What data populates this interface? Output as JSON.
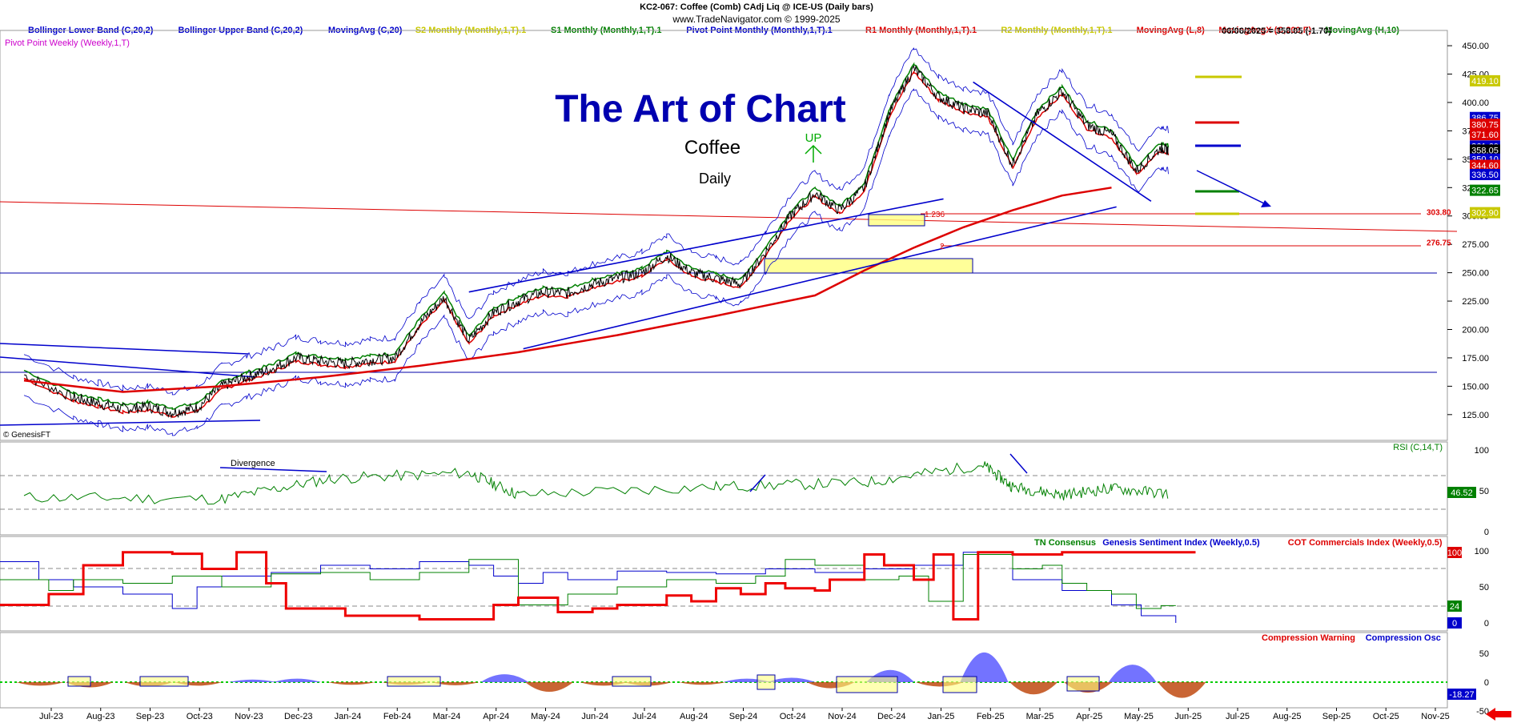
{
  "header": {
    "title": "KC2-067:  Coffee (Comb) CAdj Liq @ ICE-US  (Daily bars)",
    "copyright": "www.TradeNavigator.com © 1999-2025",
    "genesis": "© GenesisFT"
  },
  "legend": [
    {
      "text": "Bollinger Lower Band (C,20,2)",
      "color": "#0000cc"
    },
    {
      "text": "Bollinger Upper Band (C,20,2)",
      "color": "#0000cc"
    },
    {
      "text": "MovingAvg (C,20)",
      "color": "#0000cc"
    },
    {
      "text": "S2 Monthly (Monthly,1,T).1",
      "color": "#c8c800"
    },
    {
      "text": "S1 Monthly (Monthly,1,T).1",
      "color": "#008000"
    },
    {
      "text": "Pivot Point Monthly (Monthly,1,T).1",
      "color": "#0000cc"
    },
    {
      "text": "R1 Monthly (Monthly,1,T).1",
      "color": "#dd0000"
    },
    {
      "text": "R2 Monthly (Monthly,1,T).1",
      "color": "#c8c800"
    },
    {
      "text": "MovingAvg (L,8)",
      "color": "#dd0000"
    },
    {
      "text": "MovingAvgX (C,200,F)",
      "color": "#dd0000"
    },
    {
      "text": "MovingAvg (H,10)",
      "color": "#008000"
    }
  ],
  "legend2": {
    "text": "Pivot Point Weekly (Weekly,1,T)",
    "color": "#cc00cc"
  },
  "last_quote": "06/06/2025 = 358.05 (-1.70)",
  "overlay": {
    "title": "The Art of Chart",
    "symbol": "Coffee",
    "period": "Daily",
    "up_label": "UP"
  },
  "annotations": {
    "divergence": "Divergence",
    "fib1": "1.236",
    "fib2": "2"
  },
  "level_labels": [
    {
      "text": "303.80",
      "value": 303.8,
      "color": "#dd0000"
    },
    {
      "text": "276.75",
      "value": 276.75,
      "color": "#dd0000"
    }
  ],
  "price_tags": [
    {
      "text": "419.10",
      "value": 419.1,
      "bg": "#c8c800",
      "fg": "#ffffff"
    },
    {
      "text": "386.75",
      "value": 386.75,
      "bg": "#0000cc",
      "fg": "#ffffff"
    },
    {
      "text": "380.75",
      "value": 380.75,
      "bg": "#dd0000",
      "fg": "#ffffff"
    },
    {
      "text": "371.60",
      "value": 371.6,
      "bg": "#dd0000",
      "fg": "#ffffff"
    },
    {
      "text": "361.60",
      "value": 361.6,
      "bg": "#0000cc",
      "fg": "#ffffff"
    },
    {
      "text": "358.05",
      "value": 358.05,
      "bg": "#000000",
      "fg": "#ffffff"
    },
    {
      "text": "350.10",
      "value": 350.1,
      "bg": "#0000cc",
      "fg": "#ffffff"
    },
    {
      "text": "344.60",
      "value": 344.6,
      "bg": "#dd0000",
      "fg": "#ffffff"
    },
    {
      "text": "336.50",
      "value": 336.5,
      "bg": "#0000cc",
      "fg": "#ffffff"
    },
    {
      "text": "322.65",
      "value": 322.65,
      "bg": "#008000",
      "fg": "#ffffff"
    },
    {
      "text": "302.90",
      "value": 302.9,
      "bg": "#c8c800",
      "fg": "#ffffff"
    }
  ],
  "panels": {
    "rsi": {
      "label": "RSI (C,14,T)",
      "last_tag": "46.52",
      "ticks": [
        "100",
        "50",
        "0"
      ]
    },
    "sentiment": {
      "labels": [
        {
          "text": "TN Consensus",
          "color": "#008000"
        },
        {
          "text": "Genesis Sentiment Index (Weekly,0.5)",
          "color": "#0000cc"
        },
        {
          "text": "COT Commercials Index (Weekly,0.5)",
          "color": "#dd0000"
        }
      ],
      "tags": [
        {
          "text": "100",
          "bg": "#dd0000"
        },
        {
          "text": "24",
          "bg": "#008000"
        },
        {
          "text": "0",
          "bg": "#0000cc"
        }
      ],
      "ticks": [
        "100",
        "50",
        "0"
      ]
    },
    "compression": {
      "labels": [
        {
          "text": "Compression Warning",
          "color": "#dd0000"
        },
        {
          "text": "Compression Osc",
          "color": "#0000cc"
        }
      ],
      "last_tag": "-18.27",
      "ticks": [
        "50",
        "0",
        "-50"
      ]
    }
  },
  "chart_data": {
    "type": "line",
    "title": "KC2-067:  Coffee (Comb) CAdj Liq @ ICE-US  (Daily bars)",
    "ylim": [
      115,
      455
    ],
    "y_ticks": [
      125,
      150,
      175,
      200,
      225,
      250,
      275,
      300,
      325,
      350,
      375,
      400,
      425,
      450
    ],
    "x_labels": [
      "Jul-23",
      "Aug-23",
      "Sep-23",
      "Oct-23",
      "Nov-23",
      "Dec-23",
      "Jan-24",
      "Feb-24",
      "Mar-24",
      "Apr-24",
      "May-24",
      "Jun-24",
      "Jul-24",
      "Aug-24",
      "Sep-24",
      "Oct-24",
      "Nov-24",
      "Dec-24",
      "Jan-25",
      "Feb-25",
      "Mar-25",
      "Apr-25",
      "May-25",
      "Jun-25",
      "Jul-25",
      "Aug-25",
      "Sep-25",
      "Oct-25",
      "Nov-25"
    ],
    "series": [
      {
        "name": "Coffee (Comb) CAdj Liq",
        "color": "#000000",
        "x": [
          0,
          1,
          1.5,
          2,
          2.5,
          3,
          3.5,
          4,
          4.5,
          5,
          5.5,
          6,
          6.5,
          7,
          7.5,
          8,
          8.5,
          9,
          9.5,
          10,
          10.5,
          11,
          11.5,
          12,
          12.5,
          13,
          13.5,
          14,
          14.5,
          15,
          15.5,
          16,
          16.5,
          17,
          17.5,
          18,
          18.5,
          19,
          19.5,
          20,
          20.5,
          21,
          21.5,
          22,
          22.5,
          23,
          23.15
        ],
        "values": [
          160,
          140,
          135,
          130,
          132,
          127,
          131,
          150,
          158,
          165,
          175,
          172,
          170,
          173,
          175,
          205,
          228,
          190,
          215,
          225,
          233,
          232,
          240,
          245,
          250,
          265,
          250,
          245,
          240,
          268,
          300,
          320,
          305,
          325,
          390,
          430,
          405,
          395,
          390,
          345,
          390,
          410,
          380,
          372,
          340,
          360,
          358
        ]
      },
      {
        "name": "MovingAvgX (C,200,F)",
        "color": "#dd0000",
        "x": [
          0,
          2,
          4,
          6,
          8,
          10,
          12,
          14,
          16,
          17,
          18,
          19,
          20,
          21,
          22
        ],
        "values": [
          155,
          145,
          150,
          158,
          168,
          180,
          195,
          212,
          230,
          252,
          272,
          290,
          305,
          318,
          325
        ]
      }
    ],
    "trend_lines": [
      {
        "x": [
          9.0,
          18.6
        ],
        "values": [
          233,
          315
        ]
      },
      {
        "x": [
          10.1,
          22.1
        ],
        "values": [
          183,
          308
        ]
      },
      {
        "x": [
          19.2,
          22.8
        ],
        "values": [
          418,
          313
        ]
      }
    ]
  }
}
